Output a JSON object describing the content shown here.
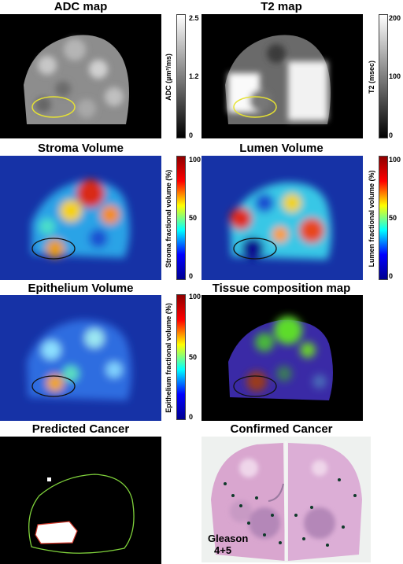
{
  "panels": {
    "adc": {
      "title": "ADC map",
      "cbar_label": "ADC (µm²/ms)",
      "ticks": [
        "2.5",
        "1.2",
        "0"
      ]
    },
    "t2": {
      "title": "T2 map",
      "cbar_label": "T2 (msec)",
      "ticks": [
        "200",
        "100",
        "0"
      ]
    },
    "stroma": {
      "title": "Stroma Volume",
      "cbar_label": "Stroma fractional volume  (%)",
      "ticks": [
        "100",
        "50",
        "0"
      ]
    },
    "lumen": {
      "title": "Lumen Volume",
      "cbar_label": "Lumen fractional volume  (%)",
      "ticks": [
        "100",
        "50",
        "0"
      ]
    },
    "epithelium": {
      "title": "Epithelium Volume",
      "cbar_label": "Epithelium fractional volume  (%)",
      "ticks": [
        "100",
        "50",
        "0"
      ]
    },
    "composition": {
      "title": "Tissue composition map"
    },
    "predicted": {
      "title": "Predicted Cancer"
    },
    "confirmed": {
      "title": "Confirmed Cancer",
      "gleason_line1": "Gleason",
      "gleason_line2": "4+5"
    }
  },
  "colors": {
    "roi_adc": "#e6e233",
    "roi_dark": "#111111",
    "prostate_outline": "#7fd13b",
    "cancer_outline": "#d23a2c",
    "jet_low": "#00008f",
    "jet_high": "#8f0000"
  }
}
